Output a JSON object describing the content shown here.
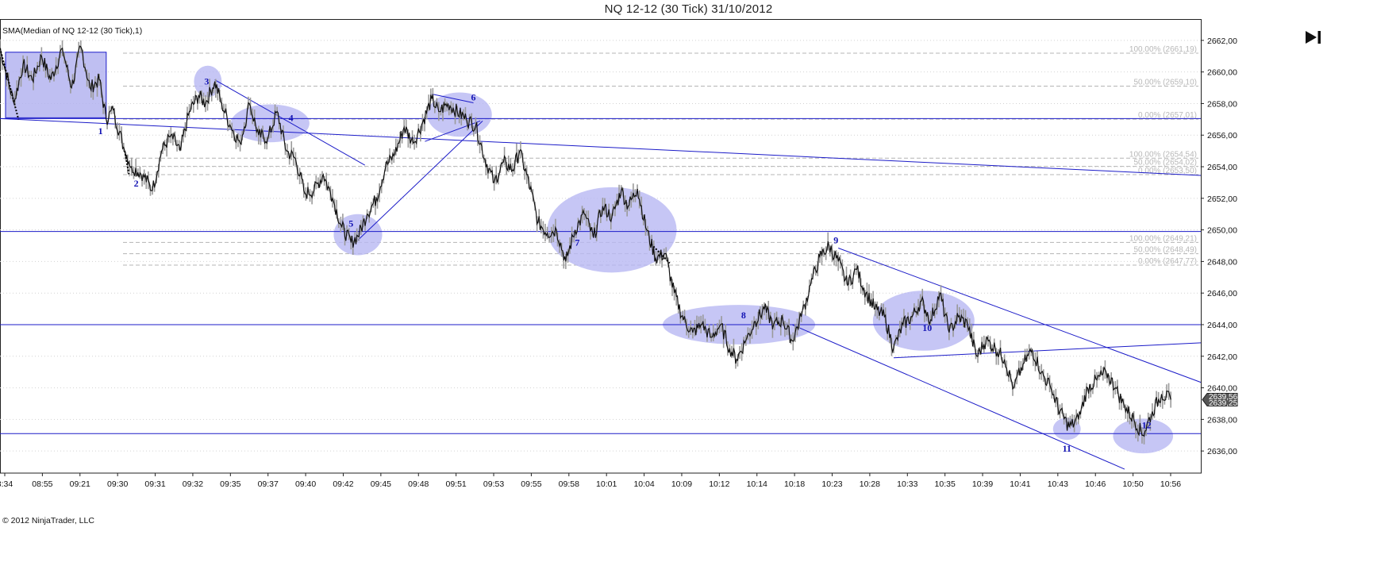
{
  "window": {
    "title": "NQ 12-12 (30 Tick)  31/10/2012",
    "indicator_label": "SMA(Median of NQ 12-12 (30 Tick),1)",
    "copyright": "© 2012 NinjaTrader, LLC",
    "go_to_end_icon": "skip-to-end-icon"
  },
  "colors": {
    "price_line": "#111111",
    "bar_wick": "#9a9a9a",
    "drawing_blue": "#1b1bc8",
    "ellipse_fill": "#b8b8f2",
    "rect_fill": "#b4b4f0",
    "fib_dash": "#b4b4b4",
    "grid_dot": "#d2d2d2",
    "price_tag": "#555555"
  },
  "chart_data": {
    "type": "line",
    "ylim": [
      2634.6,
      2663.3
    ],
    "y_ticks": [
      "2662,00",
      "2660,00",
      "2658,00",
      "2656,00",
      "2654,00",
      "2652,00",
      "2650,00",
      "2648,00",
      "2646,00",
      "2644,00",
      "2642,00",
      "2640,00",
      "2638,00",
      "2636,00"
    ],
    "x_ticks": [
      "8:34",
      "08:55",
      "09:21",
      "09:30",
      "09:31",
      "09:32",
      "09:35",
      "09:37",
      "09:40",
      "09:42",
      "09:45",
      "09:48",
      "09:51",
      "09:53",
      "09:55",
      "09:58",
      "10:01",
      "10:04",
      "10:09",
      "10:12",
      "10:14",
      "10:18",
      "10:23",
      "10:28",
      "10:33",
      "10:35",
      "10:39",
      "10:41",
      "10:43",
      "10:46",
      "10:50",
      "10:56"
    ],
    "last_price_tags": [
      "2639,56",
      "2639,25"
    ],
    "series": [
      {
        "anchors": [
          [
            0,
            2661.5
          ],
          [
            6,
            2658
          ],
          [
            10,
            2660.5
          ],
          [
            14,
            2659.5
          ],
          [
            18,
            2661
          ],
          [
            22,
            2659.5
          ],
          [
            27,
            2661.5
          ],
          [
            31,
            2659
          ],
          [
            35,
            2661.6
          ],
          [
            39,
            2659
          ],
          [
            43,
            2659.5
          ],
          [
            46,
            2657
          ],
          [
            49,
            2657.6
          ],
          [
            54,
            2655
          ],
          [
            57,
            2654
          ],
          [
            62,
            2653.5
          ],
          [
            66,
            2652.5
          ],
          [
            70,
            2655
          ],
          [
            74,
            2656
          ],
          [
            78,
            2655
          ],
          [
            82,
            2657.5
          ],
          [
            86,
            2658.5
          ],
          [
            89,
            2658
          ],
          [
            93,
            2659.4
          ],
          [
            96,
            2658
          ],
          [
            100,
            2656.5
          ],
          [
            104,
            2655.5
          ],
          [
            108,
            2658
          ],
          [
            112,
            2656
          ],
          [
            116,
            2655.8
          ],
          [
            120,
            2657.5
          ],
          [
            124,
            2655
          ],
          [
            128,
            2654.5
          ],
          [
            132,
            2652.3
          ],
          [
            136,
            2652.5
          ],
          [
            140,
            2653.5
          ],
          [
            144,
            2652
          ],
          [
            148,
            2650.2
          ],
          [
            152,
            2649.2
          ],
          [
            155,
            2649.6
          ],
          [
            159,
            2651
          ],
          [
            163,
            2652
          ],
          [
            167,
            2654
          ],
          [
            171,
            2654.8
          ],
          [
            175,
            2656.5
          ],
          [
            179,
            2655.5
          ],
          [
            183,
            2656.8
          ],
          [
            187,
            2658.3
          ],
          [
            190,
            2657.5
          ],
          [
            194,
            2658
          ],
          [
            198,
            2657.5
          ],
          [
            202,
            2657
          ],
          [
            206,
            2656.6
          ],
          [
            210,
            2654.5
          ],
          [
            214,
            2653
          ],
          [
            218,
            2654.3
          ],
          [
            222,
            2653.8
          ],
          [
            225,
            2655
          ],
          [
            229,
            2653
          ],
          [
            233,
            2650.5
          ],
          [
            237,
            2649.8
          ],
          [
            241,
            2650
          ],
          [
            245,
            2648
          ],
          [
            249,
            2650
          ],
          [
            253,
            2651
          ],
          [
            257,
            2649.5
          ],
          [
            261,
            2651.5
          ],
          [
            265,
            2650.8
          ],
          [
            269,
            2652.5
          ],
          [
            272,
            2651.5
          ],
          [
            276,
            2652.6
          ],
          [
            280,
            2650
          ],
          [
            284,
            2648.2
          ],
          [
            288,
            2648.5
          ],
          [
            292,
            2646
          ],
          [
            296,
            2644.3
          ],
          [
            300,
            2643.5
          ],
          [
            304,
            2644
          ],
          [
            308,
            2643.2
          ],
          [
            312,
            2644
          ],
          [
            316,
            2642.5
          ],
          [
            319,
            2641.8
          ],
          [
            323,
            2643
          ],
          [
            327,
            2644.2
          ],
          [
            331,
            2645
          ],
          [
            335,
            2644
          ],
          [
            339,
            2644.3
          ],
          [
            343,
            2643
          ],
          [
            347,
            2644.5
          ],
          [
            351,
            2646.5
          ],
          [
            355,
            2648.3
          ],
          [
            359,
            2649
          ],
          [
            363,
            2648
          ],
          [
            367,
            2646.5
          ],
          [
            371,
            2647.5
          ],
          [
            375,
            2646
          ],
          [
            379,
            2645
          ],
          [
            383,
            2644.5
          ],
          [
            387,
            2642.5
          ],
          [
            391,
            2644
          ],
          [
            395,
            2644.5
          ],
          [
            399,
            2645.5
          ],
          [
            403,
            2644.3
          ],
          [
            407,
            2646
          ],
          [
            411,
            2643.5
          ],
          [
            415,
            2644.5
          ],
          [
            419,
            2644
          ],
          [
            423,
            2642
          ],
          [
            427,
            2643
          ],
          [
            431,
            2642.5
          ],
          [
            435,
            2641.8
          ],
          [
            439,
            2640
          ],
          [
            443,
            2641.5
          ],
          [
            447,
            2642.4
          ],
          [
            451,
            2641
          ],
          [
            455,
            2640
          ],
          [
            459,
            2638.5
          ],
          [
            463,
            2637.5
          ],
          [
            467,
            2638
          ],
          [
            471,
            2640
          ],
          [
            475,
            2640.5
          ],
          [
            479,
            2641
          ],
          [
            483,
            2640
          ],
          [
            487,
            2638.8
          ],
          [
            491,
            2638
          ],
          [
            495,
            2637
          ],
          [
            499,
            2638.5
          ],
          [
            503,
            2639.6
          ],
          [
            507,
            2639.25
          ]
        ]
      }
    ]
  },
  "horizontal_levels": [
    2657.05,
    2649.9,
    2644.0,
    2637.1
  ],
  "trend_lines": [
    {
      "x1": 0,
      "y1": 2657.05,
      "x2": 520,
      "y2": 2653.45
    },
    {
      "x1": 93,
      "y1": 2659.5,
      "x2": 158,
      "y2": 2654.1
    },
    {
      "x1": 155,
      "y1": 2649.35,
      "x2": 209,
      "y2": 2656.9
    },
    {
      "x1": 187,
      "y1": 2658.6,
      "x2": 205,
      "y2": 2658.05
    },
    {
      "x1": 184,
      "y1": 2655.6,
      "x2": 208,
      "y2": 2656.9
    },
    {
      "x1": 363,
      "y1": 2648.85,
      "x2": 520,
      "y2": 2640.35
    },
    {
      "x1": 343,
      "y1": 2644.0,
      "x2": 487,
      "y2": 2634.85
    },
    {
      "x1": 387,
      "y1": 2641.9,
      "x2": 520,
      "y2": 2642.85
    }
  ],
  "fib_groups": [
    {
      "levels": [
        {
          "pct": "100,00% (2661,19)",
          "price": 2661.19
        },
        {
          "pct": "50,00% (2659,10)",
          "price": 2659.1
        },
        {
          "pct": "0,00% (2657,01)",
          "price": 2657.01
        }
      ]
    },
    {
      "levels": [
        {
          "pct": "100,00% (2654,54)",
          "price": 2654.54
        },
        {
          "pct": "50,00% (2654,02)",
          "price": 2654.02
        },
        {
          "pct": "0,00% (2653,50)",
          "price": 2653.5
        }
      ]
    },
    {
      "levels": [
        {
          "pct": "100,00% (2649,21)",
          "price": 2649.21
        },
        {
          "pct": "50,00% (2648,49)",
          "price": 2648.49
        },
        {
          "pct": "0,00% (2647,77)",
          "price": 2647.77
        }
      ]
    }
  ],
  "ellipses": [
    {
      "x": 90,
      "y": 2659.4,
      "rx": 6,
      "ry": 1.0
    },
    {
      "x": 117,
      "y": 2656.75,
      "rx": 17,
      "ry": 1.2
    },
    {
      "x": 155,
      "y": 2649.7,
      "rx": 10.5,
      "ry": 1.3
    },
    {
      "x": 199,
      "y": 2657.3,
      "rx": 14,
      "ry": 1.4
    },
    {
      "x": 265,
      "y": 2650.0,
      "rx": 28,
      "ry": 2.7
    },
    {
      "x": 320,
      "y": 2644.0,
      "rx": 33,
      "ry": 1.25
    },
    {
      "x": 400,
      "y": 2644.25,
      "rx": 22,
      "ry": 1.9
    },
    {
      "x": 462,
      "y": 2637.4,
      "rx": 6,
      "ry": 0.7
    },
    {
      "x": 495,
      "y": 2636.95,
      "rx": 13,
      "ry": 1.1
    }
  ],
  "box": {
    "x1": 2.4,
    "y1": 2661.25,
    "x2": 46,
    "y2": 2657.1
  },
  "wave_labels": [
    {
      "text": "1",
      "x": 43.5,
      "y": 2656.05
    },
    {
      "text": "2",
      "x": 59,
      "y": 2652.75
    },
    {
      "text": "3",
      "x": 89.5,
      "y": 2659.2
    },
    {
      "text": "4",
      "x": 126,
      "y": 2656.9
    },
    {
      "text": "5",
      "x": 152,
      "y": 2650.2
    },
    {
      "text": "6",
      "x": 205,
      "y": 2658.2
    },
    {
      "text": "7",
      "x": 250,
      "y": 2649.0
    },
    {
      "text": "8",
      "x": 322,
      "y": 2644.4
    },
    {
      "text": "9",
      "x": 362,
      "y": 2649.15
    },
    {
      "text": "10",
      "x": 401.5,
      "y": 2643.6
    },
    {
      "text": "11",
      "x": 462,
      "y": 2635.95
    },
    {
      "text": "12",
      "x": 496.5,
      "y": 2637.45
    }
  ]
}
